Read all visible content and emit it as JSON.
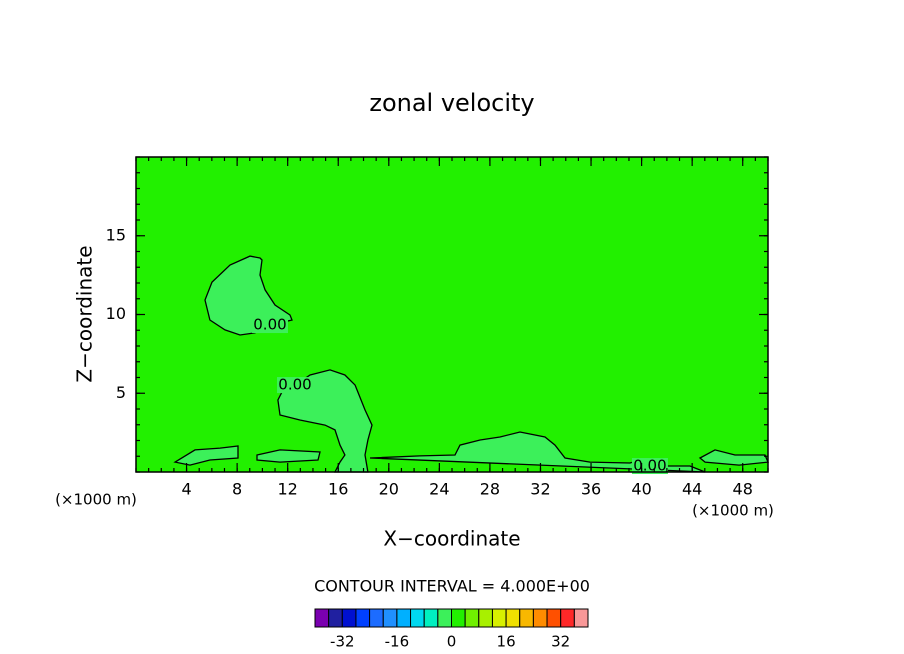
{
  "chart_data": {
    "type": "contour",
    "title": "zonal velocity",
    "x_label": "X−coordinate",
    "y_label": "Z−coordinate",
    "x_unit_label": "(×1000 m)",
    "y_unit_label": "(×1000 m)",
    "xlim": [
      0,
      50
    ],
    "ylim": [
      0,
      20
    ],
    "xticks": [
      4,
      8,
      12,
      16,
      20,
      24,
      28,
      32,
      36,
      40,
      44,
      48
    ],
    "yticks": [
      5,
      10,
      15
    ],
    "color": "#22f000",
    "contours": [
      {
        "level": 0,
        "label": "0.00",
        "color": "#3cf05a",
        "x": [
          9.81,
          9.02,
          7.44,
          6.01,
          5.46,
          5.85,
          7.04,
          8.23,
          9.41,
          10.6,
          12.34,
          12.18,
          11.0,
          10.21,
          9.81,
          9.97
        ],
        "y": [
          13.59,
          13.71,
          13.14,
          12.06,
          10.92,
          9.65,
          9.02,
          8.7,
          8.83,
          9.33,
          9.65,
          9.97,
          10.6,
          11.56,
          12.51,
          13.46
        ]
      },
      {
        "level": 0,
        "label": "0.00",
        "color": "#3cf05a",
        "x": [
          18.35,
          18.12,
          18.35,
          18.67,
          18.12,
          17.33,
          16.53,
          15.35,
          13.77,
          12.58,
          11.55,
          11.23,
          11.39,
          12.97,
          14.95,
          15.74,
          16.14,
          16.53,
          16.14,
          15.74
        ],
        "y": [
          0,
          1.08,
          2.03,
          2.98,
          3.94,
          5.52,
          6.16,
          6.48,
          6.16,
          5.52,
          5.08,
          4.57,
          3.62,
          3.3,
          2.98,
          2.67,
          1.71,
          1.08,
          0.63,
          0
        ]
      },
      {
        "level": 0,
        "label": "0.00",
        "color": "#3cf05a",
        "x": [
          18.51,
          22.47,
          25.24,
          25.63,
          27.22,
          28.8,
          30.38,
          32.36,
          33.15,
          33.94,
          35.92,
          39.08,
          39.87,
          40.66,
          43.83,
          45.02
        ],
        "y": [
          0.89,
          1.02,
          1.08,
          1.71,
          2.03,
          2.22,
          2.54,
          2.22,
          1.71,
          0.89,
          0.63,
          0.57,
          0.76,
          0.38,
          0.38,
          0
        ]
      },
      {
        "level": 0,
        "color": "#3cf05a",
        "x": [
          3.09,
          4.67,
          6.65,
          8.07,
          8.07,
          5.85,
          4.27
        ],
        "y": [
          0.63,
          1.4,
          1.52,
          1.65,
          0.89,
          0.76,
          0.44
        ]
      },
      {
        "level": 0,
        "color": "#3cf05a",
        "x": [
          9.57,
          11.39,
          14.56,
          14.4,
          11.39,
          9.57
        ],
        "y": [
          1.08,
          1.4,
          1.27,
          0.76,
          0.63,
          0.76
        ]
      },
      {
        "level": 0,
        "color": "#3cf05a",
        "x": [
          44.62,
          45.81,
          47.39,
          49.76,
          50,
          47.71,
          45.02
        ],
        "y": [
          0.89,
          1.4,
          1.08,
          1.08,
          0.63,
          0.44,
          0.63
        ]
      }
    ],
    "colorbar": {
      "title": "CONTOUR INTERVAL = 4.000E+00",
      "bins": [
        -40,
        -36,
        -32,
        -28,
        -24,
        -20,
        -16,
        -12,
        -8,
        -4,
        0,
        4,
        8,
        12,
        16,
        20,
        24,
        28,
        32,
        36,
        40
      ],
      "colors": [
        "#7a00b0",
        "#2020a0",
        "#0010d0",
        "#0040ff",
        "#1c6cff",
        "#2090ff",
        "#00b0ff",
        "#00d8f0",
        "#00f0c0",
        "#3cf05a",
        "#22f000",
        "#70f000",
        "#a8f000",
        "#d8f000",
        "#f0e000",
        "#f8b800",
        "#ff8c00",
        "#ff5000",
        "#ff2828",
        "#f89898"
      ],
      "ticks": [
        -32,
        -16,
        0,
        16,
        32
      ]
    }
  }
}
